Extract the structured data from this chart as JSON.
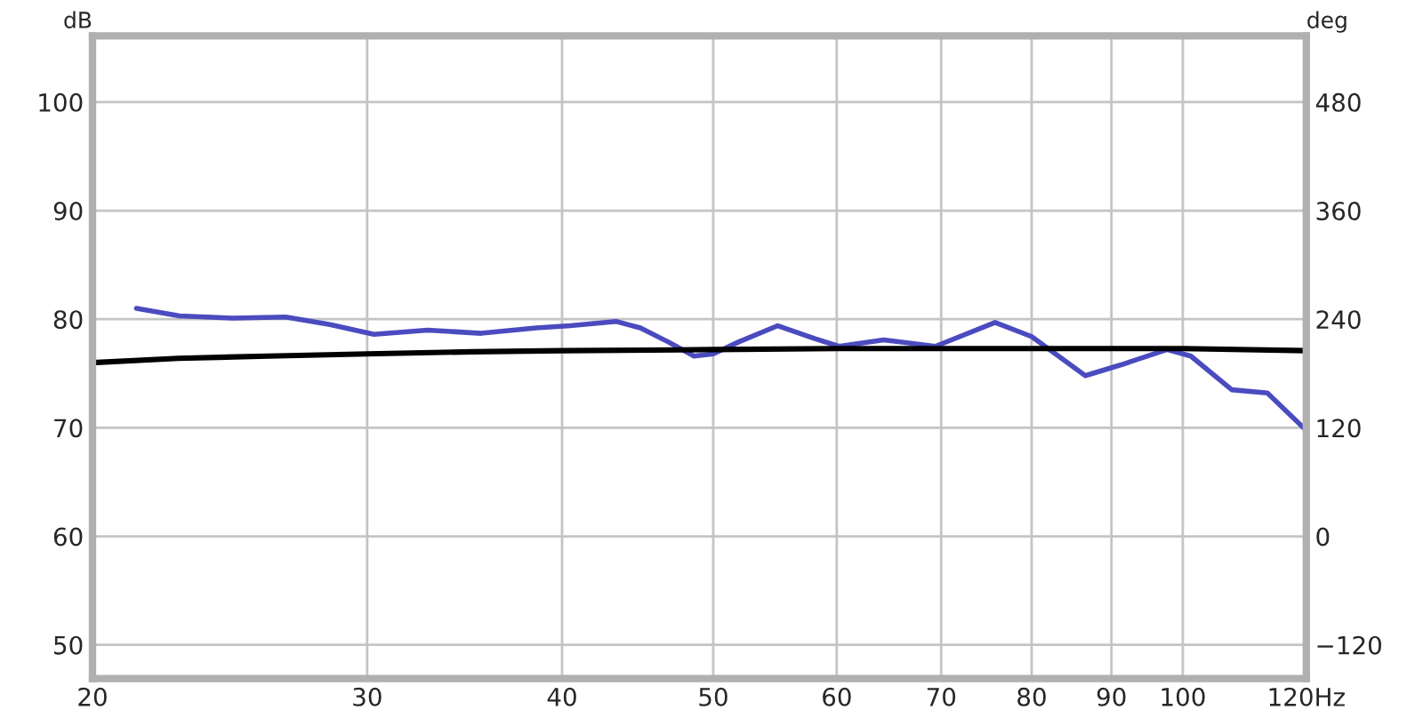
{
  "chart_data": {
    "type": "line",
    "ylabel": "dB",
    "y2label": "deg",
    "log": "x",
    "xlim": [
      20,
      120
    ],
    "xticks": [
      20,
      30,
      40,
      50,
      60,
      70,
      80,
      90,
      100,
      {
        "value": 120,
        "label": "120Hz"
      }
    ],
    "ylim": [
      46.9,
      106.1
    ],
    "yticks": [
      50,
      60,
      70,
      80,
      90,
      100
    ],
    "y2lim": [
      -157.2,
      553.2
    ],
    "y2ticks": [
      {
        "value": -120,
        "label": "−120"
      },
      0,
      120,
      240,
      360,
      480
    ],
    "grid": true,
    "line_style": "solid",
    "marker": "none",
    "series": [
      {
        "color": "#4b4bc0",
        "x": [
          21.34,
          22.74,
          24.6,
          26.6,
          28.4,
          30.3,
          32.8,
          35.5,
          38.5,
          40.5,
          43.3,
          44.9,
          46.8,
          48.6,
          50.0,
          51.9,
          55.0,
          58.1,
          60.2,
          64.3,
          69.4,
          75.8,
          80.0,
          86.6,
          91.3,
          97.7,
          101.2,
          107.5,
          113.3,
          119.9
        ],
        "values": [
          81.0,
          80.3,
          80.1,
          80.2,
          79.5,
          78.6,
          79.0,
          78.7,
          79.2,
          79.4,
          79.8,
          79.2,
          77.9,
          76.6,
          76.8,
          77.9,
          79.4,
          78.2,
          77.5,
          78.1,
          77.5,
          79.7,
          78.4,
          74.8,
          75.8,
          77.2,
          76.6,
          73.5,
          73.2,
          69.8
        ]
      },
      {
        "color": "#000000",
        "x": [
          20,
          22.7,
          25.9,
          30,
          35,
          40,
          50,
          60,
          80,
          100,
          120
        ],
        "values": [
          76.0,
          76.4,
          76.6,
          76.8,
          77.0,
          77.1,
          77.2,
          77.3,
          77.3,
          77.3,
          77.1
        ]
      }
    ]
  }
}
